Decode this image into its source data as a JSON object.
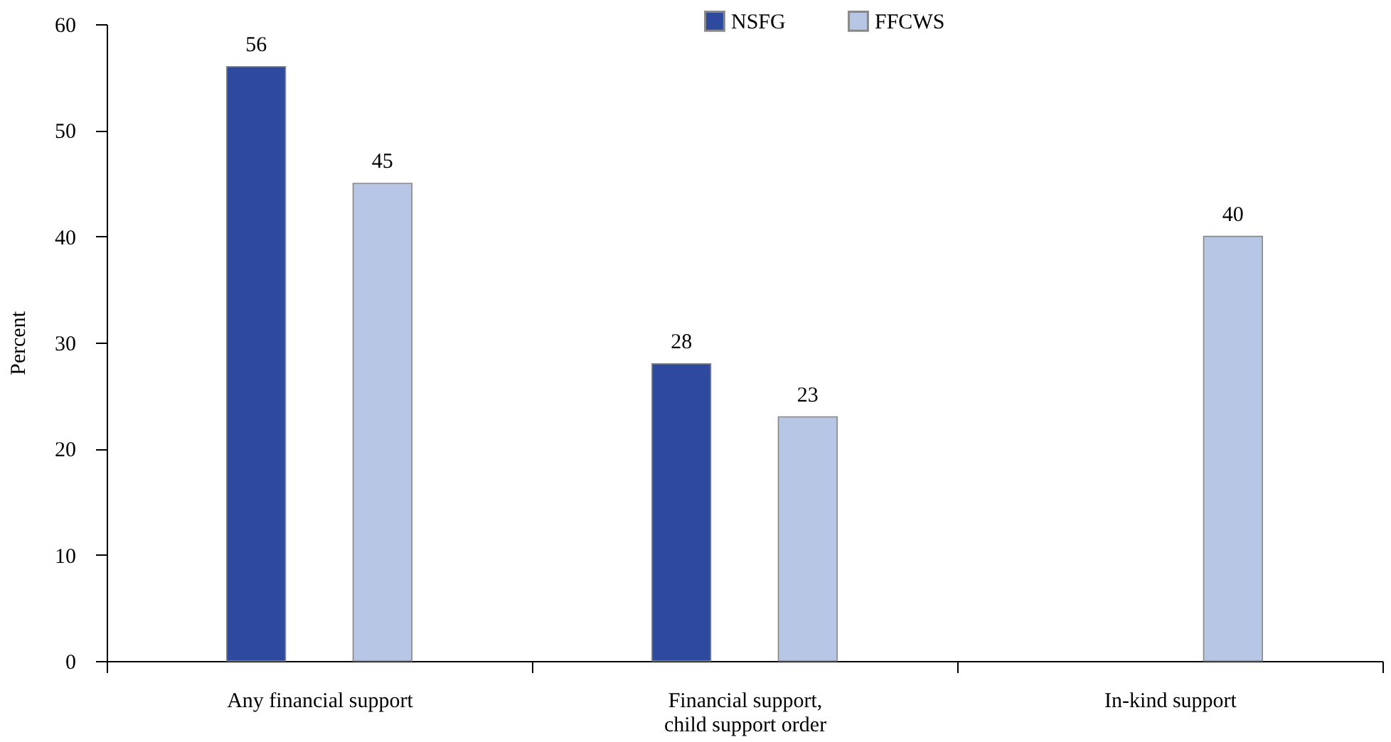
{
  "chart_data": {
    "type": "bar",
    "ylabel": "Percent",
    "categories": [
      "Any financial support",
      "Financial support, child support order",
      "In-kind support"
    ],
    "series": [
      {
        "name": "NSFG",
        "color": "#2e4a9e",
        "values": [
          56,
          28,
          null
        ]
      },
      {
        "name": "FFCWS",
        "color": "#b8c6e6",
        "values": [
          45,
          23,
          40
        ]
      }
    ],
    "ylim": [
      0,
      60
    ],
    "yticks": [
      0,
      10,
      20,
      30,
      40,
      50,
      60
    ],
    "grid": false,
    "legend": "top",
    "data_labels": true
  }
}
